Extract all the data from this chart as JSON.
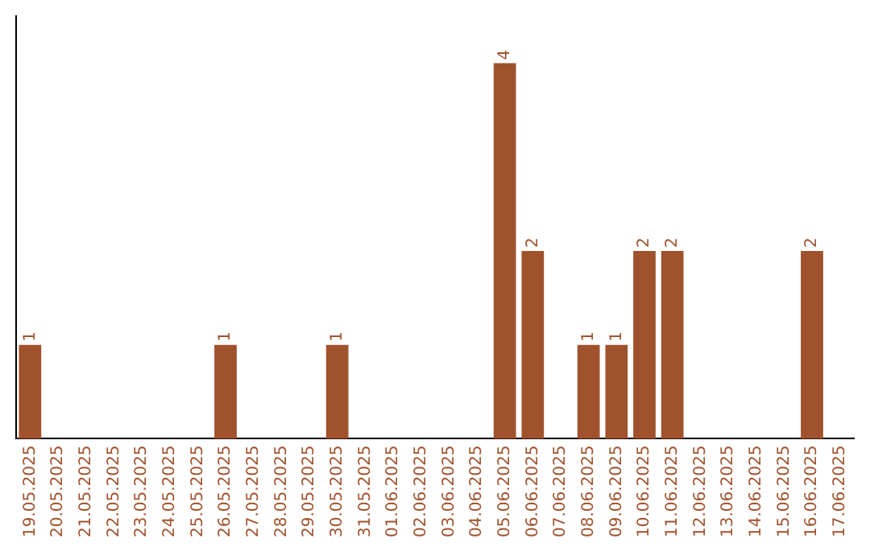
{
  "chart_data": {
    "type": "bar",
    "categories": [
      "19.05.2025",
      "20.05.2025",
      "21.05.2025",
      "22.05.2025",
      "23.05.2025",
      "24.05.2025",
      "25.05.2025",
      "26.05.2025",
      "27.05.2025",
      "28.05.2025",
      "29.05.2025",
      "30.05.2025",
      "31.05.2025",
      "01.06.2025",
      "02.06.2025",
      "03.06.2025",
      "04.06.2025",
      "05.06.2025",
      "06.06.2025",
      "07.06.2025",
      "08.06.2025",
      "09.06.2025",
      "10.06.2025",
      "11.06.2025",
      "12.06.2025",
      "13.06.2025",
      "14.06.2025",
      "15.06.2025",
      "16.06.2025",
      "17.06.2025"
    ],
    "values": [
      1,
      0,
      0,
      0,
      0,
      0,
      0,
      1,
      0,
      0,
      0,
      1,
      0,
      0,
      0,
      0,
      0,
      4,
      2,
      0,
      1,
      1,
      2,
      2,
      0,
      0,
      0,
      0,
      2,
      0
    ],
    "value_labels": [
      "1",
      null,
      null,
      null,
      null,
      null,
      null,
      "1",
      null,
      null,
      null,
      "1",
      null,
      null,
      null,
      null,
      null,
      "4",
      "2",
      null,
      "1",
      "1",
      "2",
      "2",
      null,
      null,
      null,
      null,
      "2",
      null
    ],
    "color": "#a0522d",
    "grid": false,
    "legend": false
  }
}
